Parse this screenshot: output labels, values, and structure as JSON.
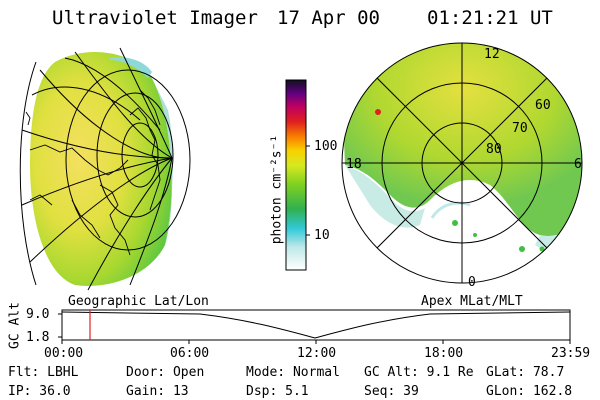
{
  "header": {
    "instrument": "Ultraviolet Imager",
    "date": "17 Apr 00",
    "time": "01:21:21 UT"
  },
  "colorbar": {
    "unit_label": "photon cm⁻²s⁻¹",
    "tick_high": "100",
    "tick_low": "10"
  },
  "polar_plot": {
    "mlt_top": "12",
    "mlt_left": "18",
    "mlt_right": "6",
    "mlt_bottom": "0",
    "lat_60": "60",
    "lat_70": "70",
    "lat_80": "80"
  },
  "altitude_plot": {
    "left_caption": "Geographic Lat/Lon",
    "right_caption": "Apex MLat/MLT",
    "y_label": "GC Alt",
    "y_tick_top": "9.0",
    "y_tick_bottom": "1.8",
    "x_ticks": [
      "00:00",
      "06:00",
      "12:00",
      "18:00",
      "23:59"
    ]
  },
  "info": {
    "filter": "Flt: LBHL",
    "door": "Door: Open",
    "mode": "Mode: Normal",
    "gc_alt": "GC Alt: 9.1 Re",
    "glat": "GLat: 78.7",
    "ip": "IP: 36.0",
    "gain": "Gain: 13",
    "dsp": "Dsp:   5.1",
    "seq": "Seq: 39",
    "glon": "GLon: 162.8"
  }
}
